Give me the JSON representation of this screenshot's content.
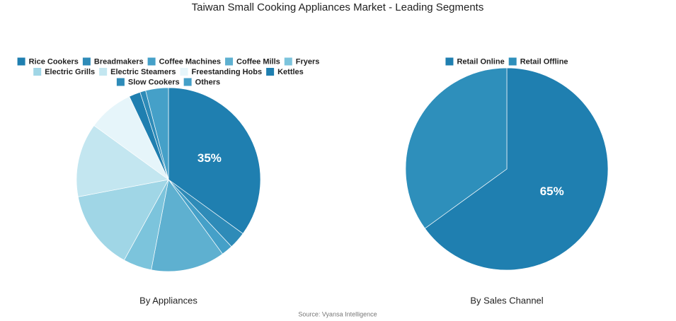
{
  "title": "Taiwan Small Cooking Appliances Market - Leading Segments",
  "source": "Source: Vyansa Intelligence",
  "chart_data": [
    {
      "type": "pie",
      "subtitle": "By Appliances",
      "categories": [
        "Rice Cookers",
        "Breadmakers",
        "Coffee Machines",
        "Coffee Mills",
        "Fryers",
        "Electric Grills",
        "Electric Steamers",
        "Freestanding Hobs",
        "Kettles",
        "Slow Cookers",
        "Others"
      ],
      "values": [
        35,
        3,
        2,
        13,
        5,
        14,
        13,
        8,
        2,
        1,
        4
      ],
      "value_labels": [
        "35%",
        null,
        null,
        null,
        null,
        null,
        null,
        null,
        null,
        null,
        null
      ],
      "colors": [
        "#1f7fb0",
        "#2e8bb8",
        "#45a0c8",
        "#5eb0d0",
        "#7cc4dc",
        "#a0d6e6",
        "#c3e6f0",
        "#e6f5fa",
        "#1f7fb0",
        "#2e8bb8",
        "#45a0c8"
      ]
    },
    {
      "type": "pie",
      "subtitle": "By Sales Channel",
      "categories": [
        "Retail Online",
        "Retail Offline"
      ],
      "values": [
        65,
        35
      ],
      "value_labels": [
        "65%",
        null
      ],
      "colors": [
        "#1f7fb0",
        "#2e8fbb"
      ]
    }
  ]
}
